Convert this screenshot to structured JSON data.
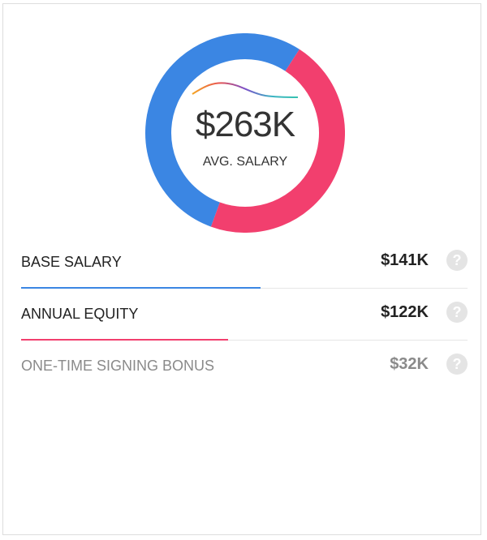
{
  "summary": {
    "amount": "$263K",
    "label": "AVG. SALARY"
  },
  "breakdown": [
    {
      "label": "BASE SALARY",
      "value": "$141K",
      "share": 0.536,
      "color": "#3b86e3"
    },
    {
      "label": "ANNUAL EQUITY",
      "value": "$122K",
      "share": 0.464,
      "color": "#f23f6e"
    },
    {
      "label": "ONE-TIME SIGNING BONUS",
      "value": "$32K",
      "share": 0,
      "color": "#8a8a8a"
    }
  ],
  "icons": {
    "help": "?"
  },
  "colors": {
    "base": "#3b86e3",
    "equity": "#f23f6e",
    "sparkline": [
      "#f5a623",
      "#e8554f",
      "#7b4fc9",
      "#3bb3c3",
      "#37c2b0"
    ]
  }
}
